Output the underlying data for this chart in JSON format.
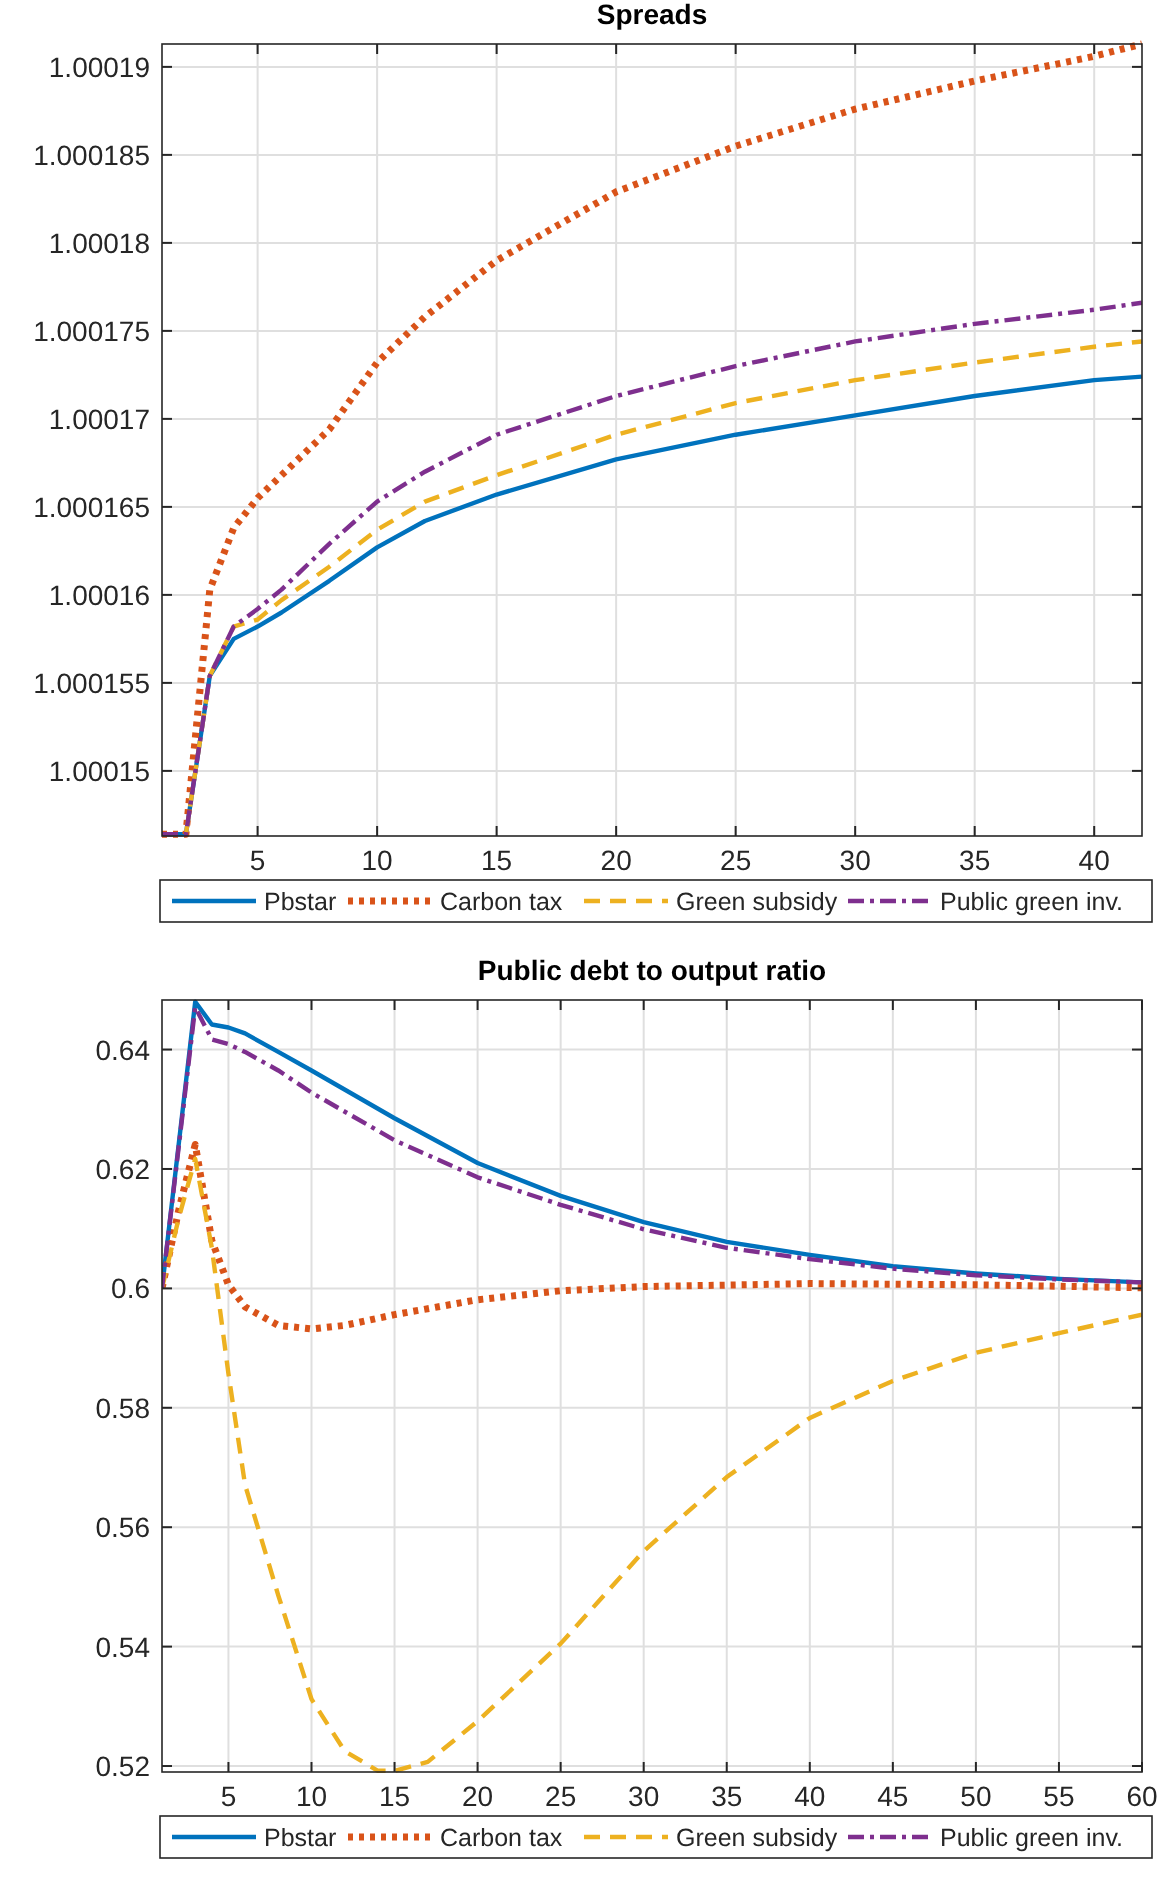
{
  "chart_data": [
    {
      "type": "line",
      "title": "Spreads",
      "xlim": [
        1,
        42
      ],
      "xticks": [
        5,
        10,
        15,
        20,
        25,
        30,
        35,
        40
      ],
      "ylim": [
        1.0001463,
        1.0001913
      ],
      "yticks": [
        1.00015,
        1.000155,
        1.00016,
        1.000165,
        1.00017,
        1.000175,
        1.00018,
        1.000185,
        1.00019
      ],
      "grid": true,
      "legend": "bottom",
      "series": [
        {
          "name": "Pbstar",
          "color": "#0072bd",
          "line_style": "solid",
          "x": [
            1,
            2,
            3,
            4,
            5,
            6,
            8,
            10,
            12,
            15,
            20,
            25,
            30,
            35,
            40,
            42
          ],
          "values": [
            1.0001464,
            1.0001464,
            1.0001554,
            1.0001575,
            1.0001582,
            1.000159,
            1.0001608,
            1.0001627,
            1.0001642,
            1.0001657,
            1.0001677,
            1.0001691,
            1.0001702,
            1.0001713,
            1.0001722,
            1.0001724
          ]
        },
        {
          "name": "Carbon tax",
          "color": "#d95319",
          "line_style": "dotted",
          "x": [
            1,
            2,
            3,
            4,
            5,
            6,
            8,
            10,
            12,
            15,
            20,
            25,
            30,
            35,
            40,
            42
          ],
          "values": [
            1.0001464,
            1.0001464,
            1.0001603,
            1.0001638,
            1.0001655,
            1.0001668,
            1.0001694,
            1.0001732,
            1.0001758,
            1.000179,
            1.0001829,
            1.0001855,
            1.0001876,
            1.0001892,
            1.0001906,
            1.0001913
          ]
        },
        {
          "name": "Green subsidy",
          "color": "#edb120",
          "line_style": "dashed",
          "x": [
            1,
            2,
            3,
            4,
            5,
            6,
            8,
            10,
            12,
            15,
            20,
            25,
            30,
            35,
            40,
            42
          ],
          "values": [
            1.0001464,
            1.0001464,
            1.0001554,
            1.0001582,
            1.0001586,
            1.0001597,
            1.0001616,
            1.0001637,
            1.0001653,
            1.0001668,
            1.0001691,
            1.0001709,
            1.0001722,
            1.0001732,
            1.0001741,
            1.0001744
          ]
        },
        {
          "name": "Public green inv.",
          "color": "#7e2f8e",
          "line_style": "dashdot",
          "x": [
            1,
            2,
            3,
            4,
            5,
            6,
            8,
            10,
            12,
            15,
            20,
            25,
            30,
            35,
            40,
            42
          ],
          "values": [
            1.0001464,
            1.0001464,
            1.0001554,
            1.0001582,
            1.0001592,
            1.0001603,
            1.0001629,
            1.0001653,
            1.000167,
            1.0001691,
            1.0001713,
            1.000173,
            1.0001744,
            1.0001754,
            1.0001762,
            1.0001766
          ]
        }
      ]
    },
    {
      "type": "line",
      "title": "Public debt to output ratio",
      "xlim": [
        1,
        60
      ],
      "xticks": [
        5,
        10,
        15,
        20,
        25,
        30,
        35,
        40,
        45,
        50,
        55,
        60
      ],
      "ylim": [
        0.519,
        0.6483
      ],
      "yticks": [
        0.52,
        0.54,
        0.56,
        0.58,
        0.6,
        0.62,
        0.64
      ],
      "grid": true,
      "legend": "bottom",
      "series": [
        {
          "name": "Pbstar",
          "color": "#0072bd",
          "line_style": "solid",
          "x": [
            1,
            3,
            4,
            5,
            6,
            8,
            10,
            15,
            20,
            25,
            30,
            35,
            40,
            45,
            50,
            55,
            60
          ],
          "values": [
            0.6,
            0.648,
            0.6442,
            0.6437,
            0.6427,
            0.6396,
            0.6365,
            0.6285,
            0.621,
            0.6155,
            0.6111,
            0.6078,
            0.6056,
            0.6037,
            0.6025,
            0.6016,
            0.601
          ]
        },
        {
          "name": "Carbon tax",
          "color": "#d95319",
          "line_style": "dotted",
          "x": [
            1,
            2,
            3,
            4,
            5,
            6,
            8,
            10,
            12,
            15,
            20,
            25,
            30,
            40,
            50,
            60
          ],
          "values": [
            0.6,
            0.613,
            0.6241,
            0.608,
            0.6006,
            0.5969,
            0.5938,
            0.5932,
            0.5938,
            0.5956,
            0.5981,
            0.5996,
            0.6003,
            0.6008,
            0.6006,
            0.6001
          ]
        },
        {
          "name": "Green subsidy",
          "color": "#edb120",
          "line_style": "dashed",
          "x": [
            1,
            2,
            3,
            4,
            5,
            6,
            8,
            10,
            12,
            14,
            15,
            17,
            20,
            25,
            30,
            35,
            40,
            45,
            50,
            55,
            60
          ],
          "values": [
            0.6,
            0.6117,
            0.6217,
            0.6068,
            0.5857,
            0.5671,
            0.5486,
            0.5312,
            0.5225,
            0.5192,
            0.5192,
            0.5207,
            0.5275,
            0.5405,
            0.556,
            0.5684,
            0.5783,
            0.5845,
            0.5892,
            0.5925,
            0.5956
          ]
        },
        {
          "name": "Public green inv.",
          "color": "#7e2f8e",
          "line_style": "dashdot",
          "x": [
            1,
            3,
            4,
            5,
            6,
            8,
            10,
            15,
            20,
            25,
            30,
            35,
            40,
            45,
            50,
            55,
            60
          ],
          "values": [
            0.6,
            0.6471,
            0.6417,
            0.6409,
            0.6396,
            0.6365,
            0.6328,
            0.6248,
            0.6186,
            0.614,
            0.6099,
            0.6068,
            0.6049,
            0.6033,
            0.6022,
            0.6015,
            0.601
          ]
        }
      ]
    }
  ]
}
